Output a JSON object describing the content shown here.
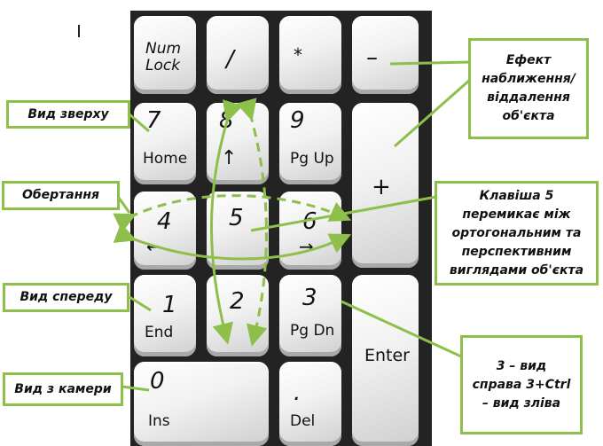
{
  "keys": {
    "num_lock": "Num\nLock",
    "slash": "/",
    "asterisk": "*",
    "minus": "–",
    "seven": "7",
    "home": "Home",
    "eight": "8",
    "nine": "9",
    "pg_up": "Pg Up",
    "plus": "+",
    "four": "4",
    "five": "5",
    "six": "6",
    "one": "1",
    "end": "End",
    "two": "2",
    "three": "3",
    "pg_dn": "Pg Dn",
    "enter": "Enter",
    "zero": "0",
    "ins": "Ins",
    "dot": ".",
    "del": "Del"
  },
  "callouts": {
    "top_view": "Вид зверху",
    "rotation": "Обертання",
    "front_view": "Вид спереду",
    "camera_view": "Вид з камери",
    "zoom": "Ефект наближення/ віддалення об'єкта",
    "key5": "Клавіша 5 перемикає між ортогональним та перспективним виглядами об'єкта",
    "right_view": "3 – вид справа 3+Ctrl – вид зліва"
  },
  "colors": {
    "accent": "#8dbf4a",
    "keypad_bg": "#232323"
  }
}
